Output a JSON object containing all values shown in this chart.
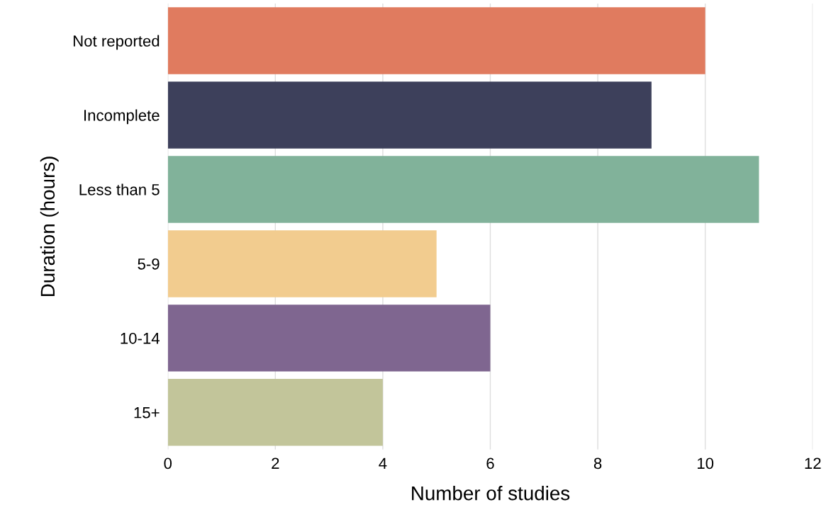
{
  "chart_data": {
    "type": "bar",
    "orientation": "horizontal",
    "xlabel": "Number of studies",
    "ylabel": "Duration (hours)",
    "categories": [
      "Not reported",
      "Incomplete",
      "Less than 5",
      "5-9",
      "10-14",
      "15+"
    ],
    "values": [
      10,
      9,
      11,
      5,
      6,
      4
    ],
    "colors": [
      "#e07b5f",
      "#3d405b",
      "#81b29a",
      "#f2cc8f",
      "#7f6690",
      "#c2c59a"
    ],
    "xlim": [
      0,
      12
    ],
    "xticks": [
      0,
      2,
      4,
      6,
      8,
      10,
      12
    ],
    "grid": "x"
  }
}
